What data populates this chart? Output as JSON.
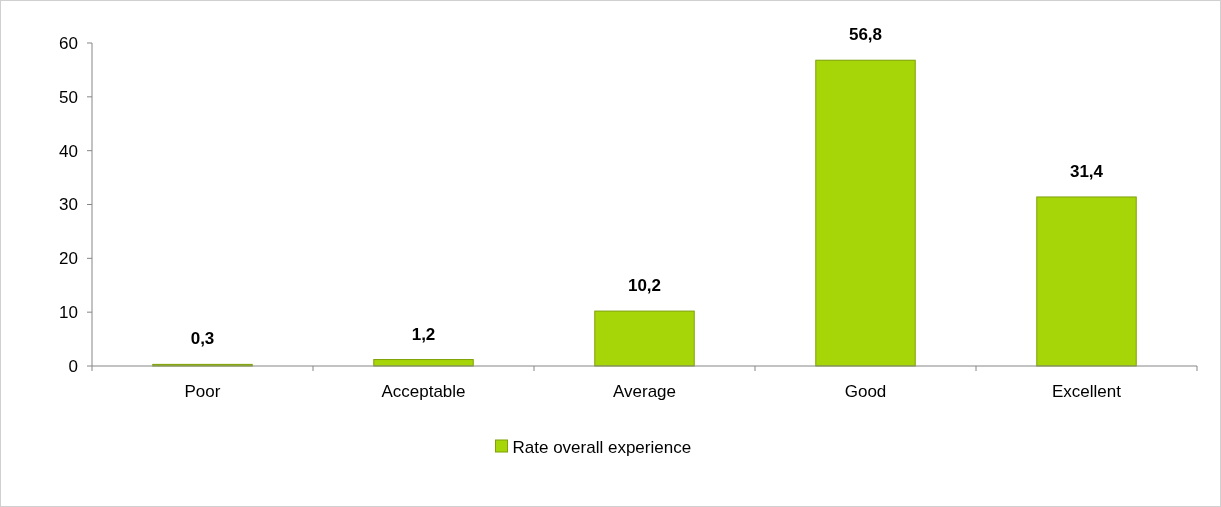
{
  "chart_data": {
    "type": "bar",
    "categories": [
      "Poor",
      "Acceptable",
      "Average",
      "Good",
      "Excellent"
    ],
    "series": [
      {
        "name": "Rate overall experience",
        "color": "#a6d608",
        "values": [
          0.3,
          1.2,
          10.2,
          56.8,
          31.4
        ],
        "value_labels": [
          "0,3",
          "1,2",
          "10,2",
          "56,8",
          "31,4"
        ]
      }
    ],
    "ylim": [
      0,
      60
    ],
    "yticks": [
      0,
      10,
      20,
      30,
      40,
      50,
      60
    ],
    "grid": false,
    "legend": "bottom"
  }
}
